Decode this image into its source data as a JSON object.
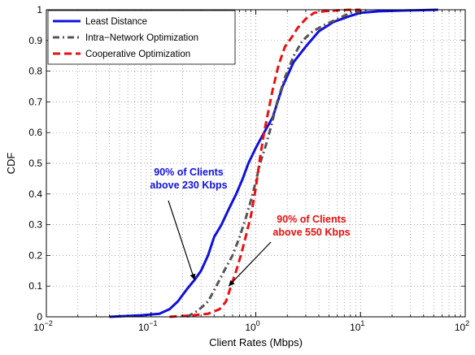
{
  "chart_data": {
    "type": "line",
    "title": "",
    "xlabel": "Client Rates (Mbps)",
    "ylabel": "CDF",
    "xscale": "log",
    "xlim": [
      0.01,
      100
    ],
    "ylim": [
      0,
      1
    ],
    "grid": true,
    "legend_position": "top-left",
    "x_ticks": [
      {
        "value": 0.01,
        "base": "10",
        "exp": "−2"
      },
      {
        "value": 0.1,
        "base": "10",
        "exp": "−1"
      },
      {
        "value": 1,
        "base": "10",
        "exp": "0"
      },
      {
        "value": 10,
        "base": "10",
        "exp": "1"
      },
      {
        "value": 100,
        "base": "10",
        "exp": "2"
      }
    ],
    "y_ticks": [
      "0",
      "0.1",
      "0.2",
      "0.3",
      "0.4",
      "0.5",
      "0.6",
      "0.7",
      "0.8",
      "0.9",
      "1"
    ],
    "series": [
      {
        "name": "Least Distance",
        "color": "#1010e0",
        "style": "solid",
        "x": [
          0.04,
          0.08,
          0.12,
          0.15,
          0.18,
          0.22,
          0.26,
          0.3,
          0.35,
          0.4,
          0.47,
          0.55,
          0.65,
          0.75,
          0.85,
          1.0,
          1.2,
          1.45,
          1.8,
          2.3,
          3.0,
          4.0,
          5.5,
          8.0,
          10.0,
          15.0,
          30.0,
          55.0
        ],
        "y": [
          0.0,
          0.005,
          0.01,
          0.025,
          0.05,
          0.09,
          0.12,
          0.15,
          0.2,
          0.26,
          0.3,
          0.35,
          0.4,
          0.45,
          0.5,
          0.55,
          0.6,
          0.65,
          0.75,
          0.83,
          0.88,
          0.93,
          0.96,
          0.98,
          0.99,
          0.995,
          0.998,
          1.0
        ]
      },
      {
        "name": "Intra−Network Optimization",
        "color": "#555555",
        "style": "dashdot",
        "x": [
          0.22,
          0.28,
          0.35,
          0.42,
          0.5,
          0.6,
          0.7,
          0.8,
          0.9,
          1.0,
          1.1,
          1.25,
          1.4,
          1.6,
          1.9,
          2.3,
          2.8,
          3.5,
          4.5,
          6.0,
          8.0,
          10.0,
          12.0
        ],
        "y": [
          0.0,
          0.02,
          0.05,
          0.1,
          0.15,
          0.2,
          0.26,
          0.32,
          0.38,
          0.44,
          0.5,
          0.56,
          0.62,
          0.7,
          0.78,
          0.85,
          0.9,
          0.93,
          0.95,
          0.97,
          0.99,
          0.995,
          1.0
        ]
      },
      {
        "name": "Cooperative Optimization",
        "color": "#e81010",
        "style": "dashed",
        "x": [
          0.15,
          0.25,
          0.35,
          0.45,
          0.52,
          0.58,
          0.65,
          0.72,
          0.8,
          0.9,
          1.0,
          1.1,
          1.2,
          1.3,
          1.45,
          1.65,
          1.9,
          2.2,
          2.5,
          3.0,
          3.6,
          4.5,
          6.0,
          8.0,
          10.0
        ],
        "y": [
          0.0,
          0.005,
          0.01,
          0.025,
          0.05,
          0.1,
          0.15,
          0.2,
          0.26,
          0.33,
          0.42,
          0.52,
          0.6,
          0.66,
          0.74,
          0.82,
          0.88,
          0.91,
          0.94,
          0.97,
          0.99,
          0.995,
          0.998,
          1.0,
          1.0
        ]
      }
    ],
    "annotations": [
      {
        "lines": [
          "90% of Clients",
          "above 230 Kbps"
        ],
        "color": "#1010e0",
        "target": {
          "x": 0.26,
          "y": 0.12
        }
      },
      {
        "lines": [
          "90% of Clients",
          "above 550 Kbps"
        ],
        "color": "#e81010",
        "target": {
          "x": 0.55,
          "y": 0.1
        }
      }
    ]
  }
}
